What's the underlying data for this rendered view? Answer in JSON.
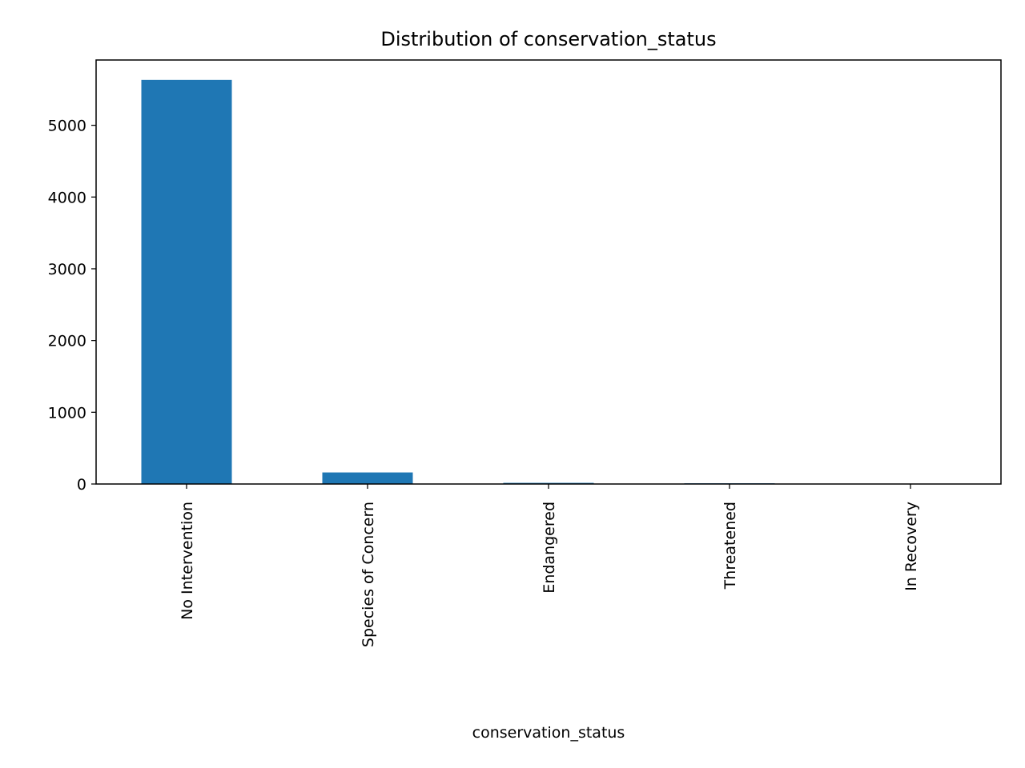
{
  "chart_data": {
    "type": "bar",
    "title": "Distribution of conservation_status",
    "xlabel": "conservation_status",
    "ylabel": "",
    "categories": [
      "No Intervention",
      "Species of Concern",
      "Endangered",
      "Threatened",
      "In Recovery"
    ],
    "values": [
      5633,
      161,
      16,
      10,
      4
    ],
    "ylim": [
      0,
      5910
    ],
    "yticks": [
      0,
      1000,
      2000,
      3000,
      4000,
      5000
    ],
    "ytick_labels": [
      "0",
      "1000",
      "2000",
      "3000",
      "4000",
      "5000"
    ],
    "grid": false,
    "legend": "none",
    "colors": {
      "bar": "#1f77b4",
      "axis": "#000000",
      "background": "#ffffff"
    }
  }
}
